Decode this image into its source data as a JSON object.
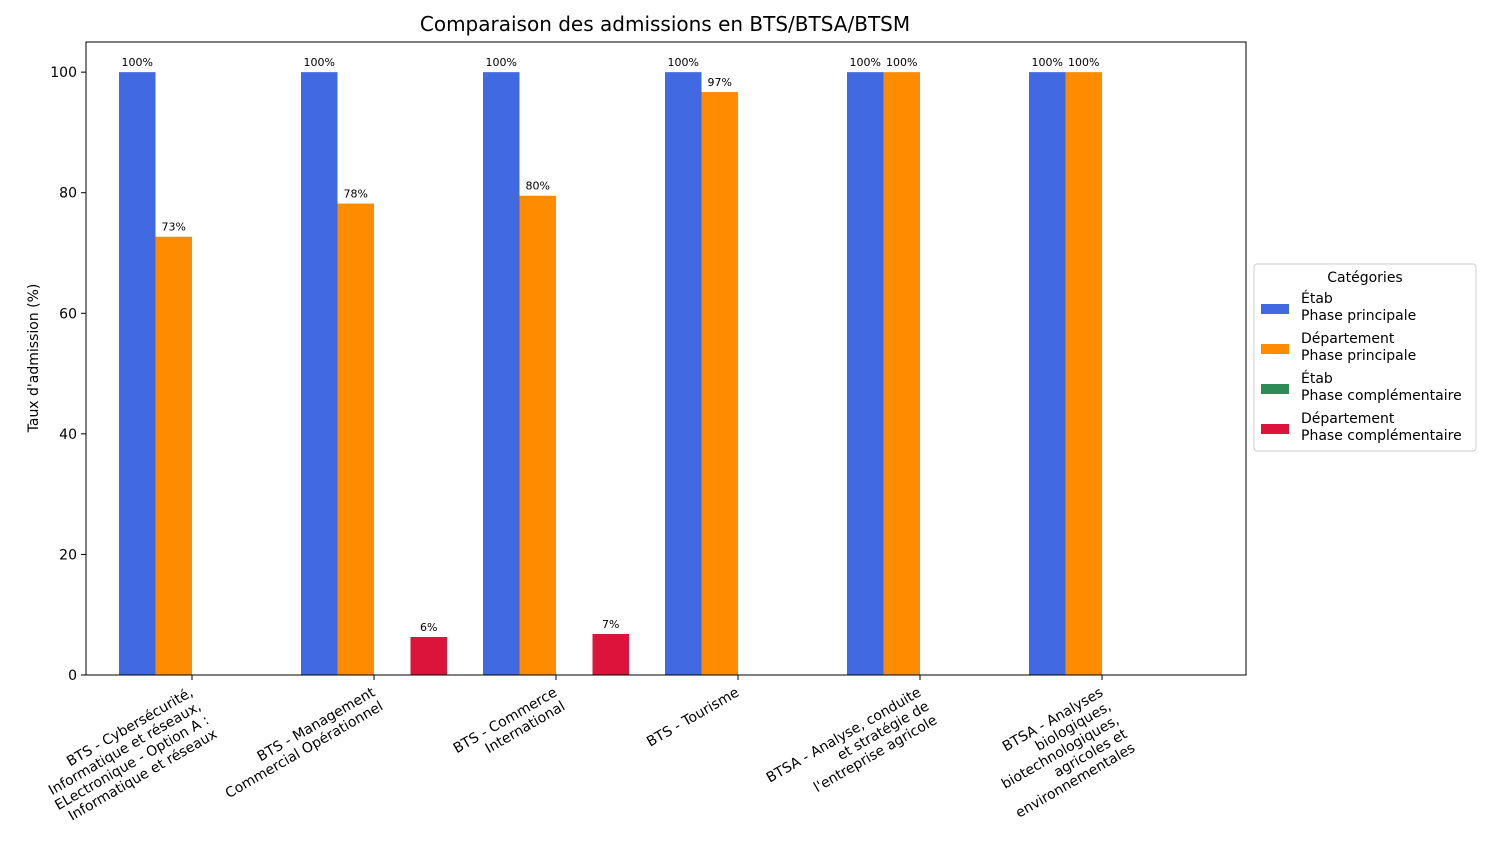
{
  "chart_data": {
    "type": "bar",
    "title": "Comparaison des admissions en BTS/BTSA/BTSM",
    "xlabel": "",
    "ylabel": "Taux d'admission (%)",
    "ylim": [
      0,
      105
    ],
    "yticks": [
      0,
      20,
      40,
      60,
      80,
      100
    ],
    "grid": false,
    "legend": {
      "title": "Catégories",
      "placement": "right-outside"
    },
    "categories": [
      [
        "BTS - Cybersécurité,",
        "Informatique et réseaux,",
        "ELectronique - Option A :",
        "Informatique et réseaux"
      ],
      [
        "BTS - Management",
        "Commercial Opérationnel"
      ],
      [
        "BTS - Commerce",
        "International"
      ],
      [
        "BTS - Tourisme"
      ],
      [
        "BTSA - Analyse, conduite",
        "et stratégie de",
        "l'entreprise agricole"
      ],
      [
        "BTSA - Analyses",
        "biologiques,",
        "biotechnologiques,",
        "agricoles et",
        "environnementales"
      ]
    ],
    "series": [
      {
        "name": [
          "Étab",
          "Phase principale"
        ],
        "color": "#4169e1",
        "values": [
          100,
          100,
          100,
          100,
          100,
          100
        ],
        "labels": [
          "100%",
          "100%",
          "100%",
          "100%",
          "100%",
          "100%"
        ]
      },
      {
        "name": [
          "Département",
          "Phase principale"
        ],
        "color": "#ff8c00",
        "values": [
          72.7,
          78.2,
          79.5,
          96.7,
          100,
          100
        ],
        "labels": [
          "73%",
          "78%",
          "80%",
          "97%",
          "100%",
          "100%"
        ]
      },
      {
        "name": [
          "Étab",
          "Phase complémentaire"
        ],
        "color": "#2e8b57",
        "values": [
          null,
          null,
          null,
          null,
          null,
          null
        ],
        "labels": [
          "",
          "",
          "",
          "",
          "",
          ""
        ]
      },
      {
        "name": [
          "Département",
          "Phase complémentaire"
        ],
        "color": "#dc143c",
        "values": [
          null,
          6.3,
          6.8,
          null,
          null,
          null
        ],
        "labels": [
          "",
          "6%",
          "7%",
          "",
          "",
          ""
        ]
      }
    ]
  }
}
